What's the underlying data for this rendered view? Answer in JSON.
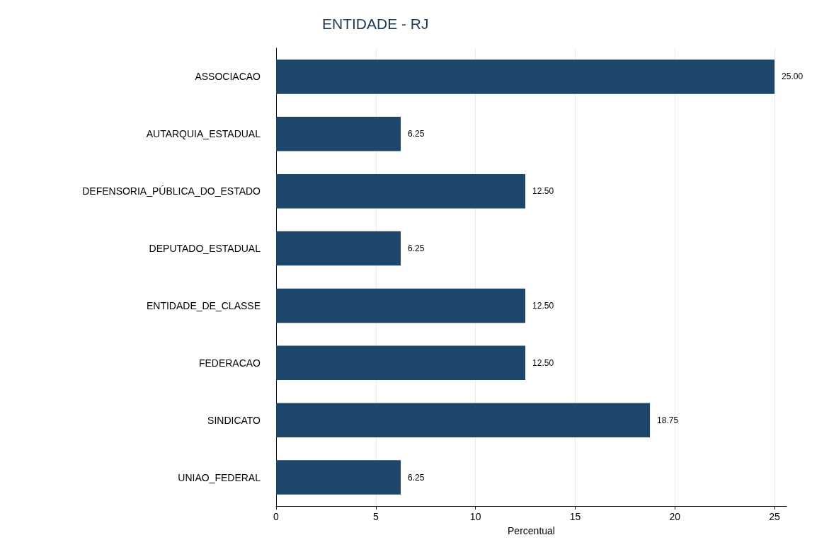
{
  "chart_data": {
    "type": "bar",
    "orientation": "horizontal",
    "title": "ENTIDADE - RJ",
    "xlabel": "Percentual",
    "categories": [
      "ASSOCIACAO",
      "AUTARQUIA_ESTADUAL",
      "DEFENSORIA_PÚBLICA_DO_ESTADO",
      "DEPUTADO_ESTADUAL",
      "ENTIDADE_DE_CLASSE",
      "FEDERACAO",
      "SINDICATO",
      "UNIAO_FEDERAL"
    ],
    "values": [
      25,
      6.25,
      12.5,
      6.25,
      12.5,
      12.5,
      18.75,
      6.25
    ],
    "value_labels": [
      "25.00",
      "6.25",
      "12.50",
      "6.25",
      "12.50",
      "12.50",
      "18.75",
      "6.25"
    ],
    "color": "#1c476b",
    "xlim": [
      0,
      25.6
    ],
    "xticks": [
      0,
      5,
      10,
      15,
      20,
      25
    ],
    "grid": "x"
  }
}
